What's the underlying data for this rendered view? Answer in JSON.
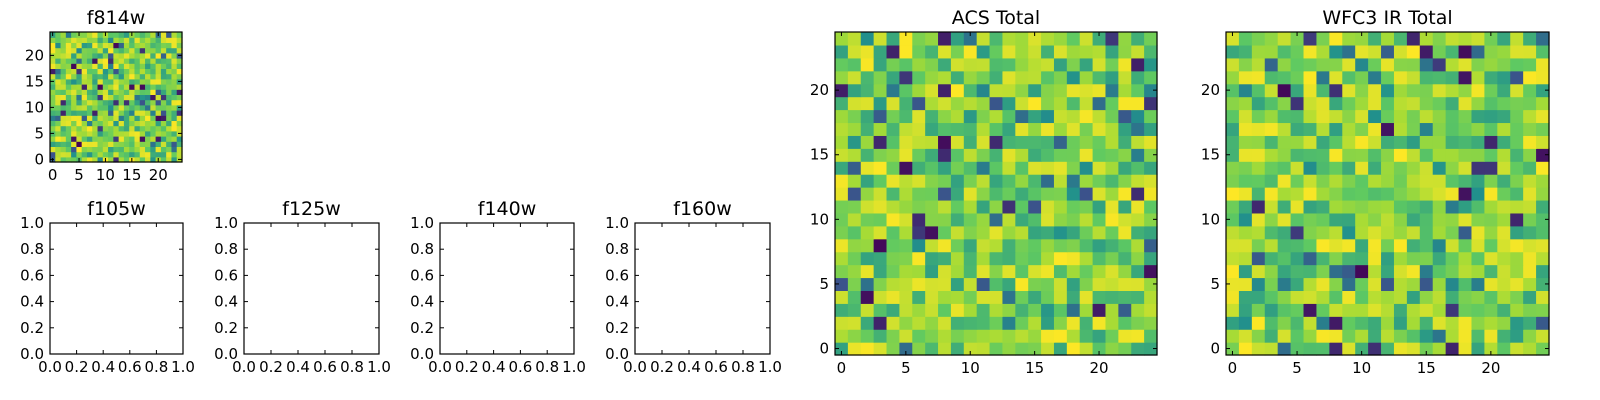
{
  "colormap": [
    "#440154",
    "#3b528b",
    "#21918c",
    "#5ec962",
    "#a5db36",
    "#fde725"
  ],
  "axis_color": "#000000",
  "chart_data": [
    {
      "type": "heatmap",
      "title": "f814w",
      "grid_size": 25,
      "xticks": [
        0,
        5,
        10,
        15,
        20
      ],
      "yticks": [
        0,
        5,
        10,
        15,
        20
      ],
      "xtick_labels": [
        "0",
        "5",
        "10",
        "15",
        "20"
      ],
      "ytick_labels": [
        "0",
        "5",
        "10",
        "15",
        "20"
      ],
      "value_range": [
        0,
        1
      ],
      "seed": 814
    },
    {
      "type": "heatmap",
      "title": "f105w",
      "empty": true,
      "xlim": [
        0.0,
        1.0
      ],
      "ylim": [
        0.0,
        1.0
      ],
      "xtick_labels": [
        "0.0",
        "0.2",
        "0.4",
        "0.6",
        "0.8",
        "1.0"
      ],
      "ytick_labels": [
        "0.0",
        "0.2",
        "0.4",
        "0.6",
        "0.8",
        "1.0"
      ]
    },
    {
      "type": "heatmap",
      "title": "f125w",
      "empty": true,
      "xlim": [
        0.0,
        1.0
      ],
      "ylim": [
        0.0,
        1.0
      ],
      "xtick_labels": [
        "0.0",
        "0.2",
        "0.4",
        "0.6",
        "0.8",
        "1.0"
      ],
      "ytick_labels": [
        "0.0",
        "0.2",
        "0.4",
        "0.6",
        "0.8",
        "1.0"
      ]
    },
    {
      "type": "heatmap",
      "title": "f140w",
      "empty": true,
      "xlim": [
        0.0,
        1.0
      ],
      "ylim": [
        0.0,
        1.0
      ],
      "xtick_labels": [
        "0.0",
        "0.2",
        "0.4",
        "0.6",
        "0.8",
        "1.0"
      ],
      "ytick_labels": [
        "0.0",
        "0.2",
        "0.4",
        "0.6",
        "0.8",
        "1.0"
      ]
    },
    {
      "type": "heatmap",
      "title": "f160w",
      "empty": true,
      "xlim": [
        0.0,
        1.0
      ],
      "ylim": [
        0.0,
        1.0
      ],
      "xtick_labels": [
        "0.0",
        "0.2",
        "0.4",
        "0.6",
        "0.8",
        "1.0"
      ],
      "ytick_labels": [
        "0.0",
        "0.2",
        "0.4",
        "0.6",
        "0.8",
        "1.0"
      ]
    },
    {
      "type": "heatmap",
      "title": "ACS Total",
      "grid_size": 25,
      "xticks": [
        0,
        5,
        10,
        15,
        20
      ],
      "yticks": [
        0,
        5,
        10,
        15,
        20
      ],
      "xtick_labels": [
        "0",
        "5",
        "10",
        "15",
        "20"
      ],
      "ytick_labels": [
        "0",
        "5",
        "10",
        "15",
        "20"
      ],
      "value_range": [
        0,
        1
      ],
      "seed": 2001
    },
    {
      "type": "heatmap",
      "title": "WFC3 IR Total",
      "grid_size": 25,
      "xticks": [
        0,
        5,
        10,
        15,
        20
      ],
      "yticks": [
        0,
        5,
        10,
        15,
        20
      ],
      "xtick_labels": [
        "0",
        "5",
        "10",
        "15",
        "20"
      ],
      "ytick_labels": [
        "0",
        "5",
        "10",
        "15",
        "20"
      ],
      "value_range": [
        0,
        1
      ],
      "seed": 3003
    }
  ]
}
